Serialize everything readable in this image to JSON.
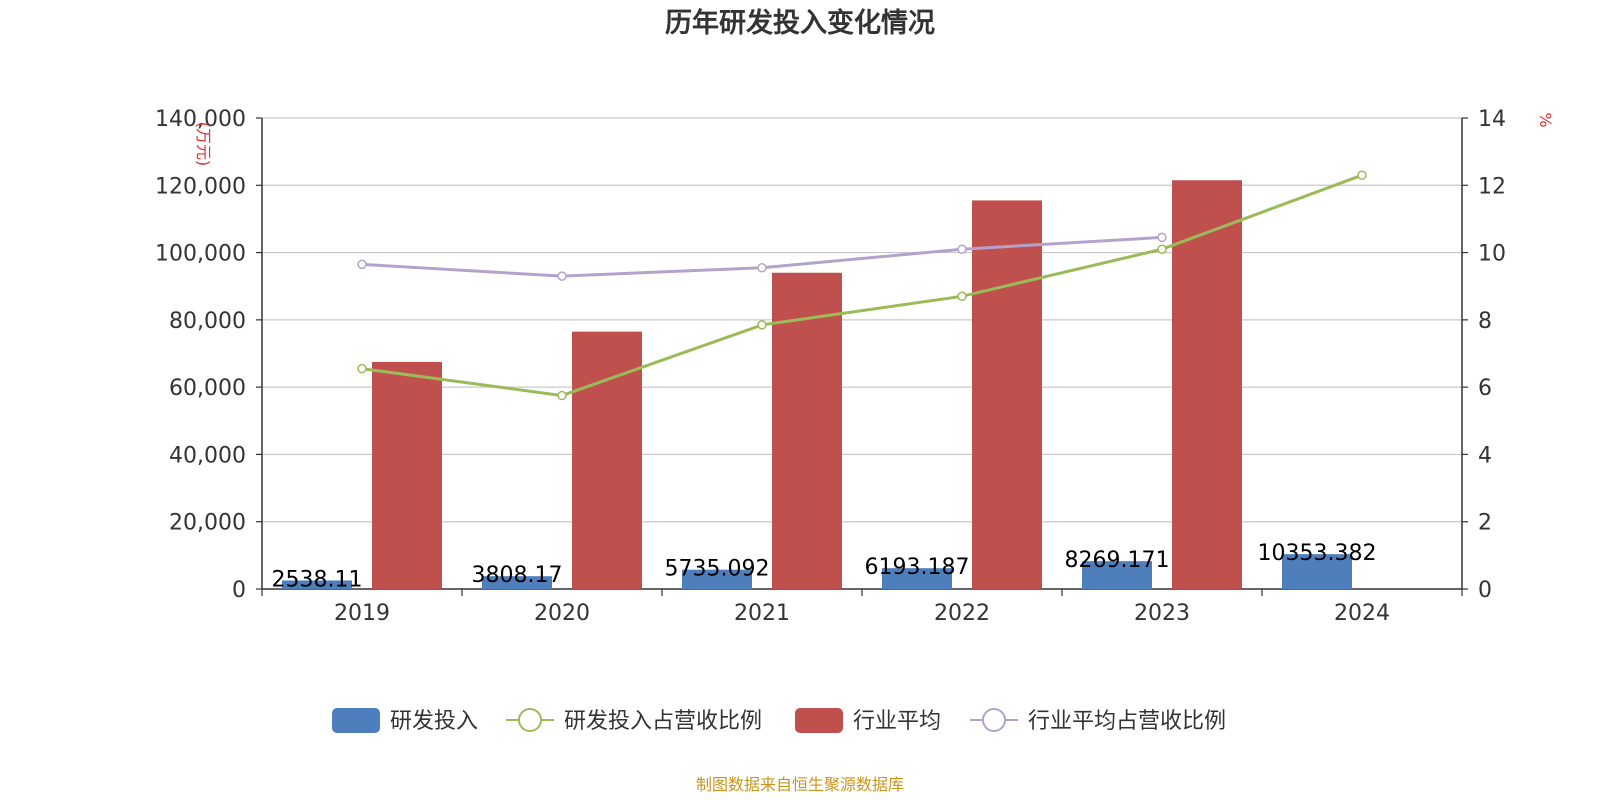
{
  "chart_data": {
    "type": "bar",
    "title": "历年研发投入变化情况",
    "categories": [
      "2019",
      "2020",
      "2021",
      "2022",
      "2023",
      "2024"
    ],
    "y_left": {
      "unit": "(万元)",
      "ylim": [
        0,
        140000
      ],
      "ticks": [
        "0",
        "20,000",
        "40,000",
        "60,000",
        "80,000",
        "100,000",
        "120,000",
        "140,000"
      ]
    },
    "y_right": {
      "unit": "%",
      "ylim": [
        0,
        14
      ],
      "ticks": [
        "0",
        "2",
        "4",
        "6",
        "8",
        "10",
        "12",
        "14"
      ]
    },
    "series": [
      {
        "name": "研发投入",
        "kind": "bar",
        "axis": "left",
        "color": "#4f7ebd",
        "values": [
          2538.11,
          3808.17,
          5735.092,
          6193.187,
          8269.171,
          10353.382
        ],
        "labels": [
          "2538.11",
          "3808.17",
          "5735.092",
          "6193.187",
          "8269.171",
          "10353.382"
        ]
      },
      {
        "name": "研发投入占营收比例",
        "kind": "line",
        "axis": "right",
        "color": "#9bbb59",
        "values": [
          6.55,
          5.75,
          7.85,
          8.7,
          10.1,
          12.3
        ]
      },
      {
        "name": "行业平均",
        "kind": "bar",
        "axis": "left",
        "color": "#c0504d",
        "values": [
          67500,
          76500,
          94000,
          115500,
          121500,
          null
        ]
      },
      {
        "name": "行业平均占营收比例",
        "kind": "line",
        "axis": "right",
        "color": "#b3a2cc",
        "values": [
          9.65,
          9.3,
          9.55,
          10.1,
          10.45,
          null
        ]
      }
    ],
    "grid": true,
    "legend": "bottom"
  },
  "footer": {
    "source": "制图数据来自恒生聚源数据库"
  }
}
